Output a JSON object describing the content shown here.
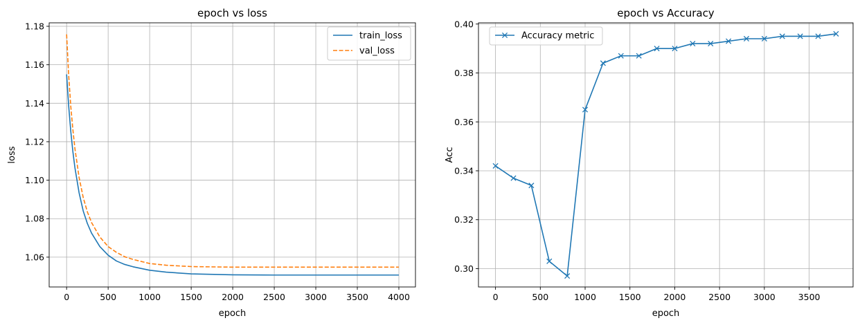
{
  "chart_data": [
    {
      "type": "line",
      "title": "epoch vs loss",
      "xlabel": "epoch",
      "ylabel": "loss",
      "xlim": [
        -210,
        4200
      ],
      "ylim": [
        1.0445,
        1.1818
      ],
      "xticks": [
        0,
        500,
        1000,
        1500,
        2000,
        2500,
        3000,
        3500,
        4000
      ],
      "yticks": [
        1.06,
        1.08,
        1.1,
        1.12,
        1.14,
        1.16,
        1.18
      ],
      "ytick_labels": [
        "1.06",
        "1.08",
        "1.10",
        "1.12",
        "1.14",
        "1.16",
        "1.18"
      ],
      "grid": true,
      "legend_position": "top-right",
      "series": [
        {
          "name": "train_loss",
          "color": "#1f77b4",
          "style": "solid",
          "x": [
            0,
            25,
            50,
            75,
            100,
            150,
            200,
            250,
            300,
            400,
            500,
            600,
            700,
            800,
            1000,
            1200,
            1500,
            2000,
            2500,
            3000,
            3500,
            4000
          ],
          "y": [
            1.155,
            1.1385,
            1.1255,
            1.115,
            1.1065,
            1.0935,
            1.084,
            1.0775,
            1.0725,
            1.0655,
            1.061,
            1.058,
            1.0562,
            1.055,
            1.0532,
            1.0522,
            1.0513,
            1.0508,
            1.0507,
            1.0507,
            1.0507,
            1.0507
          ]
        },
        {
          "name": "val_loss",
          "color": "#ff7f0e",
          "style": "dashed",
          "x": [
            0,
            25,
            50,
            75,
            100,
            150,
            200,
            250,
            300,
            400,
            500,
            600,
            700,
            800,
            1000,
            1200,
            1500,
            2000,
            2500,
            3000,
            3500,
            4000
          ],
          "y": [
            1.1758,
            1.1545,
            1.1385,
            1.1265,
            1.1165,
            1.1015,
            1.091,
            1.0835,
            1.078,
            1.0705,
            1.0655,
            1.0625,
            1.0602,
            1.0588,
            1.0567,
            1.0558,
            1.0551,
            1.0548,
            1.0548,
            1.0548,
            1.0548,
            1.0548
          ]
        }
      ]
    },
    {
      "type": "line",
      "title": "epoch vs Accuracy",
      "xlabel": "epoch",
      "ylabel": "Acc",
      "xlim": [
        -190,
        3990
      ],
      "ylim": [
        0.2925,
        0.4005
      ],
      "xticks": [
        0,
        500,
        1000,
        1500,
        2000,
        2500,
        3000,
        3500
      ],
      "yticks": [
        0.3,
        0.32,
        0.34,
        0.36,
        0.38,
        0.4
      ],
      "ytick_labels": [
        "0.30",
        "0.32",
        "0.34",
        "0.36",
        "0.38",
        "0.40"
      ],
      "grid": true,
      "legend_position": "top-left",
      "series": [
        {
          "name": "Accuracy metric",
          "color": "#1f77b4",
          "style": "solid",
          "marker": "x",
          "x": [
            0,
            200,
            400,
            600,
            800,
            1000,
            1200,
            1400,
            1600,
            1800,
            2000,
            2200,
            2400,
            2600,
            2800,
            3000,
            3200,
            3400,
            3600,
            3800
          ],
          "y": [
            0.342,
            0.337,
            0.334,
            0.303,
            0.297,
            0.365,
            0.384,
            0.387,
            0.387,
            0.39,
            0.39,
            0.392,
            0.392,
            0.393,
            0.394,
            0.394,
            0.395,
            0.395,
            0.395,
            0.396
          ]
        }
      ]
    }
  ]
}
